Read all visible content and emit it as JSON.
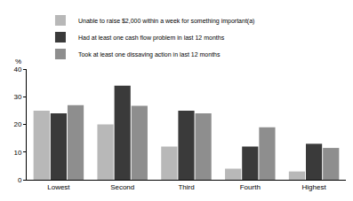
{
  "chart_data": {
    "type": "bar",
    "ylabel": "%",
    "categories": [
      "Lowest",
      "Second",
      "Third",
      "Fourth",
      "Highest"
    ],
    "series": [
      {
        "name": "Unable to raise $2,000 within a week for something important(a)",
        "color": "#b8b8b8",
        "values": [
          25,
          20,
          12,
          4,
          3
        ]
      },
      {
        "name": "Had at least one cash flow problem in last 12 months",
        "color": "#3a3a3a",
        "values": [
          24,
          34,
          25,
          12,
          13
        ]
      },
      {
        "name": "Took at least one dissaving action in last 12 months",
        "color": "#8e8e8e",
        "values": [
          27,
          26.7,
          24,
          19,
          11.5
        ]
      }
    ],
    "ylim": [
      0,
      40
    ],
    "yticks": [
      0,
      10,
      20,
      30,
      40
    ],
    "grid": true,
    "legend": "top"
  }
}
